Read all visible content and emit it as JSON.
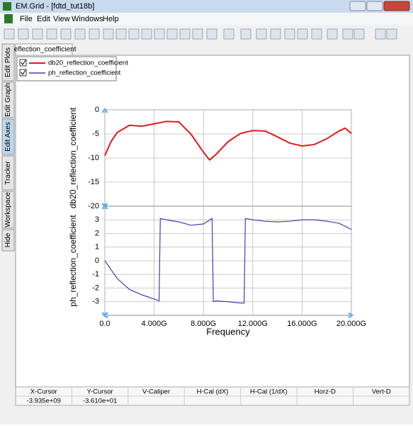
{
  "window": {
    "title": "EM.Grid - [fdtd_tut18b]",
    "menu": [
      "File",
      "Edit",
      "View",
      "Windows",
      "Help"
    ]
  },
  "side_tabs": [
    "Edit Plots",
    "Edit Graph",
    "Edit Axes",
    "Tracker",
    "Workspace",
    "Hide"
  ],
  "tab": "reflection_coefficient",
  "chart_data": [
    {
      "type": "line",
      "y_label": "db20_reflection_coefficient",
      "xlim": [
        0,
        20000000000
      ],
      "ylim": [
        -20,
        0
      ],
      "yticks": [
        0,
        -5,
        -10,
        -15,
        -20
      ],
      "grid": true,
      "series": [
        {
          "name": "db20_reflection_coefficient",
          "color": "#e31a1c",
          "x": [
            0,
            500000000,
            1000000000,
            2000000000,
            3000000000,
            4000000000,
            5000000000,
            6000000000,
            7000000000,
            8000000000,
            8500000000,
            9000000000,
            10000000000,
            11000000000,
            12000000000,
            13000000000,
            14000000000,
            15000000000,
            16000000000,
            17000000000,
            18000000000,
            19000000000,
            19500000000,
            20000000000
          ],
          "values": [
            -9.5,
            -6.6,
            -4.7,
            -3.2,
            -3.4,
            -2.9,
            -2.4,
            -2.5,
            -5.1,
            -8.8,
            -10.4,
            -9.3,
            -6.6,
            -4.9,
            -4.3,
            -4.4,
            -5.6,
            -6.9,
            -7.5,
            -7.2,
            -6.0,
            -4.4,
            -3.8,
            -4.9
          ]
        }
      ]
    },
    {
      "type": "line",
      "y_label": "ph_reflection_coefficient",
      "x_label": "Frequency",
      "xlim": [
        0,
        20000000000
      ],
      "ylim": [
        -4,
        4
      ],
      "xticks": [
        {
          "value": 0,
          "label": "0.0"
        },
        {
          "value": 4000000000,
          "label": "4.000G"
        },
        {
          "value": 8000000000,
          "label": "8.000G"
        },
        {
          "value": 12000000000,
          "label": "12.000G"
        },
        {
          "value": 16000000000,
          "label": "16.000G"
        },
        {
          "value": 20000000000,
          "label": "20.000G"
        }
      ],
      "yticks": [
        3,
        2,
        1,
        0,
        -1,
        -2,
        -3
      ],
      "grid": true,
      "series": [
        {
          "name": "ph_reflection_coefficient",
          "color": "#4040b0",
          "x": [
            0,
            1000000000,
            2000000000,
            3000000000,
            4000000000,
            4400000000,
            4500000000,
            5000000000,
            6000000000,
            7000000000,
            8000000000,
            8700000000,
            8800000000,
            9000000000,
            10000000000,
            11000000000,
            11300000000,
            11400000000,
            12000000000,
            13000000000,
            14000000000,
            15000000000,
            16000000000,
            17000000000,
            18000000000,
            19000000000,
            20000000000
          ],
          "values": [
            0,
            -1.3,
            -2.1,
            -2.5,
            -2.8,
            -2.95,
            3.1,
            3.0,
            2.85,
            2.6,
            2.7,
            3.1,
            -3.0,
            -2.95,
            -3.0,
            -3.1,
            -3.1,
            3.1,
            3.0,
            2.9,
            2.85,
            2.9,
            3.0,
            3.0,
            2.9,
            2.75,
            2.3
          ]
        }
      ]
    }
  ],
  "cursor_table": {
    "headers": [
      "X-Cursor",
      "Y-Cursor",
      "V-Caliper",
      "H-Cal (dX)",
      "H-Cal (1/dX)",
      "Horz-D",
      "Vert-D"
    ],
    "rows": [
      [
        "-3.935e+09",
        "-3.610e+01"
      ]
    ]
  }
}
